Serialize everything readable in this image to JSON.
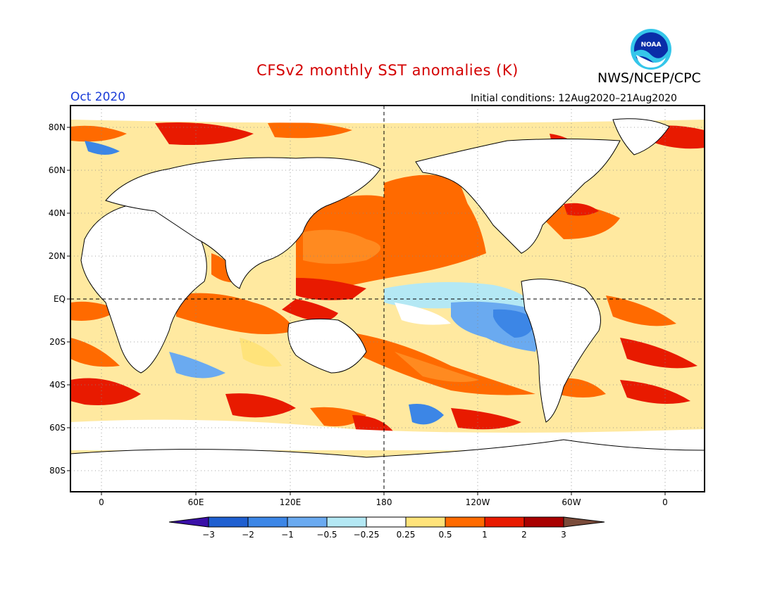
{
  "header": {
    "title": "CFSv2 monthly SST anomalies (K)",
    "agency": "NWS/NCEP/CPC",
    "month": "Oct 2020",
    "initial_conditions": "Initial conditions: 12Aug2020–21Aug2020",
    "logo_text": "NOAA"
  },
  "axes": {
    "y_ticks": [
      "80N",
      "60N",
      "40N",
      "20N",
      "EQ",
      "20S",
      "40S",
      "60S",
      "80S"
    ],
    "x_ticks": [
      "0",
      "60E",
      "120E",
      "180",
      "120W",
      "60W",
      "0"
    ]
  },
  "colorbar": {
    "labels": [
      "−3",
      "−2",
      "−1",
      "−0.5",
      "−0.25",
      "0.25",
      "0.5",
      "1",
      "2",
      "3"
    ],
    "colors": [
      "#3a10a8",
      "#1f5fd0",
      "#3c86e6",
      "#6aaaf0",
      "#b4e8f4",
      "#ffffff",
      "#ffe37a",
      "#ff6a00",
      "#e81a00",
      "#a80000",
      "#7a4b3a"
    ]
  },
  "colors": {
    "land": "#ffffff",
    "coast": "#000000",
    "title": "#d40000",
    "month": "#1a3cd8"
  }
}
